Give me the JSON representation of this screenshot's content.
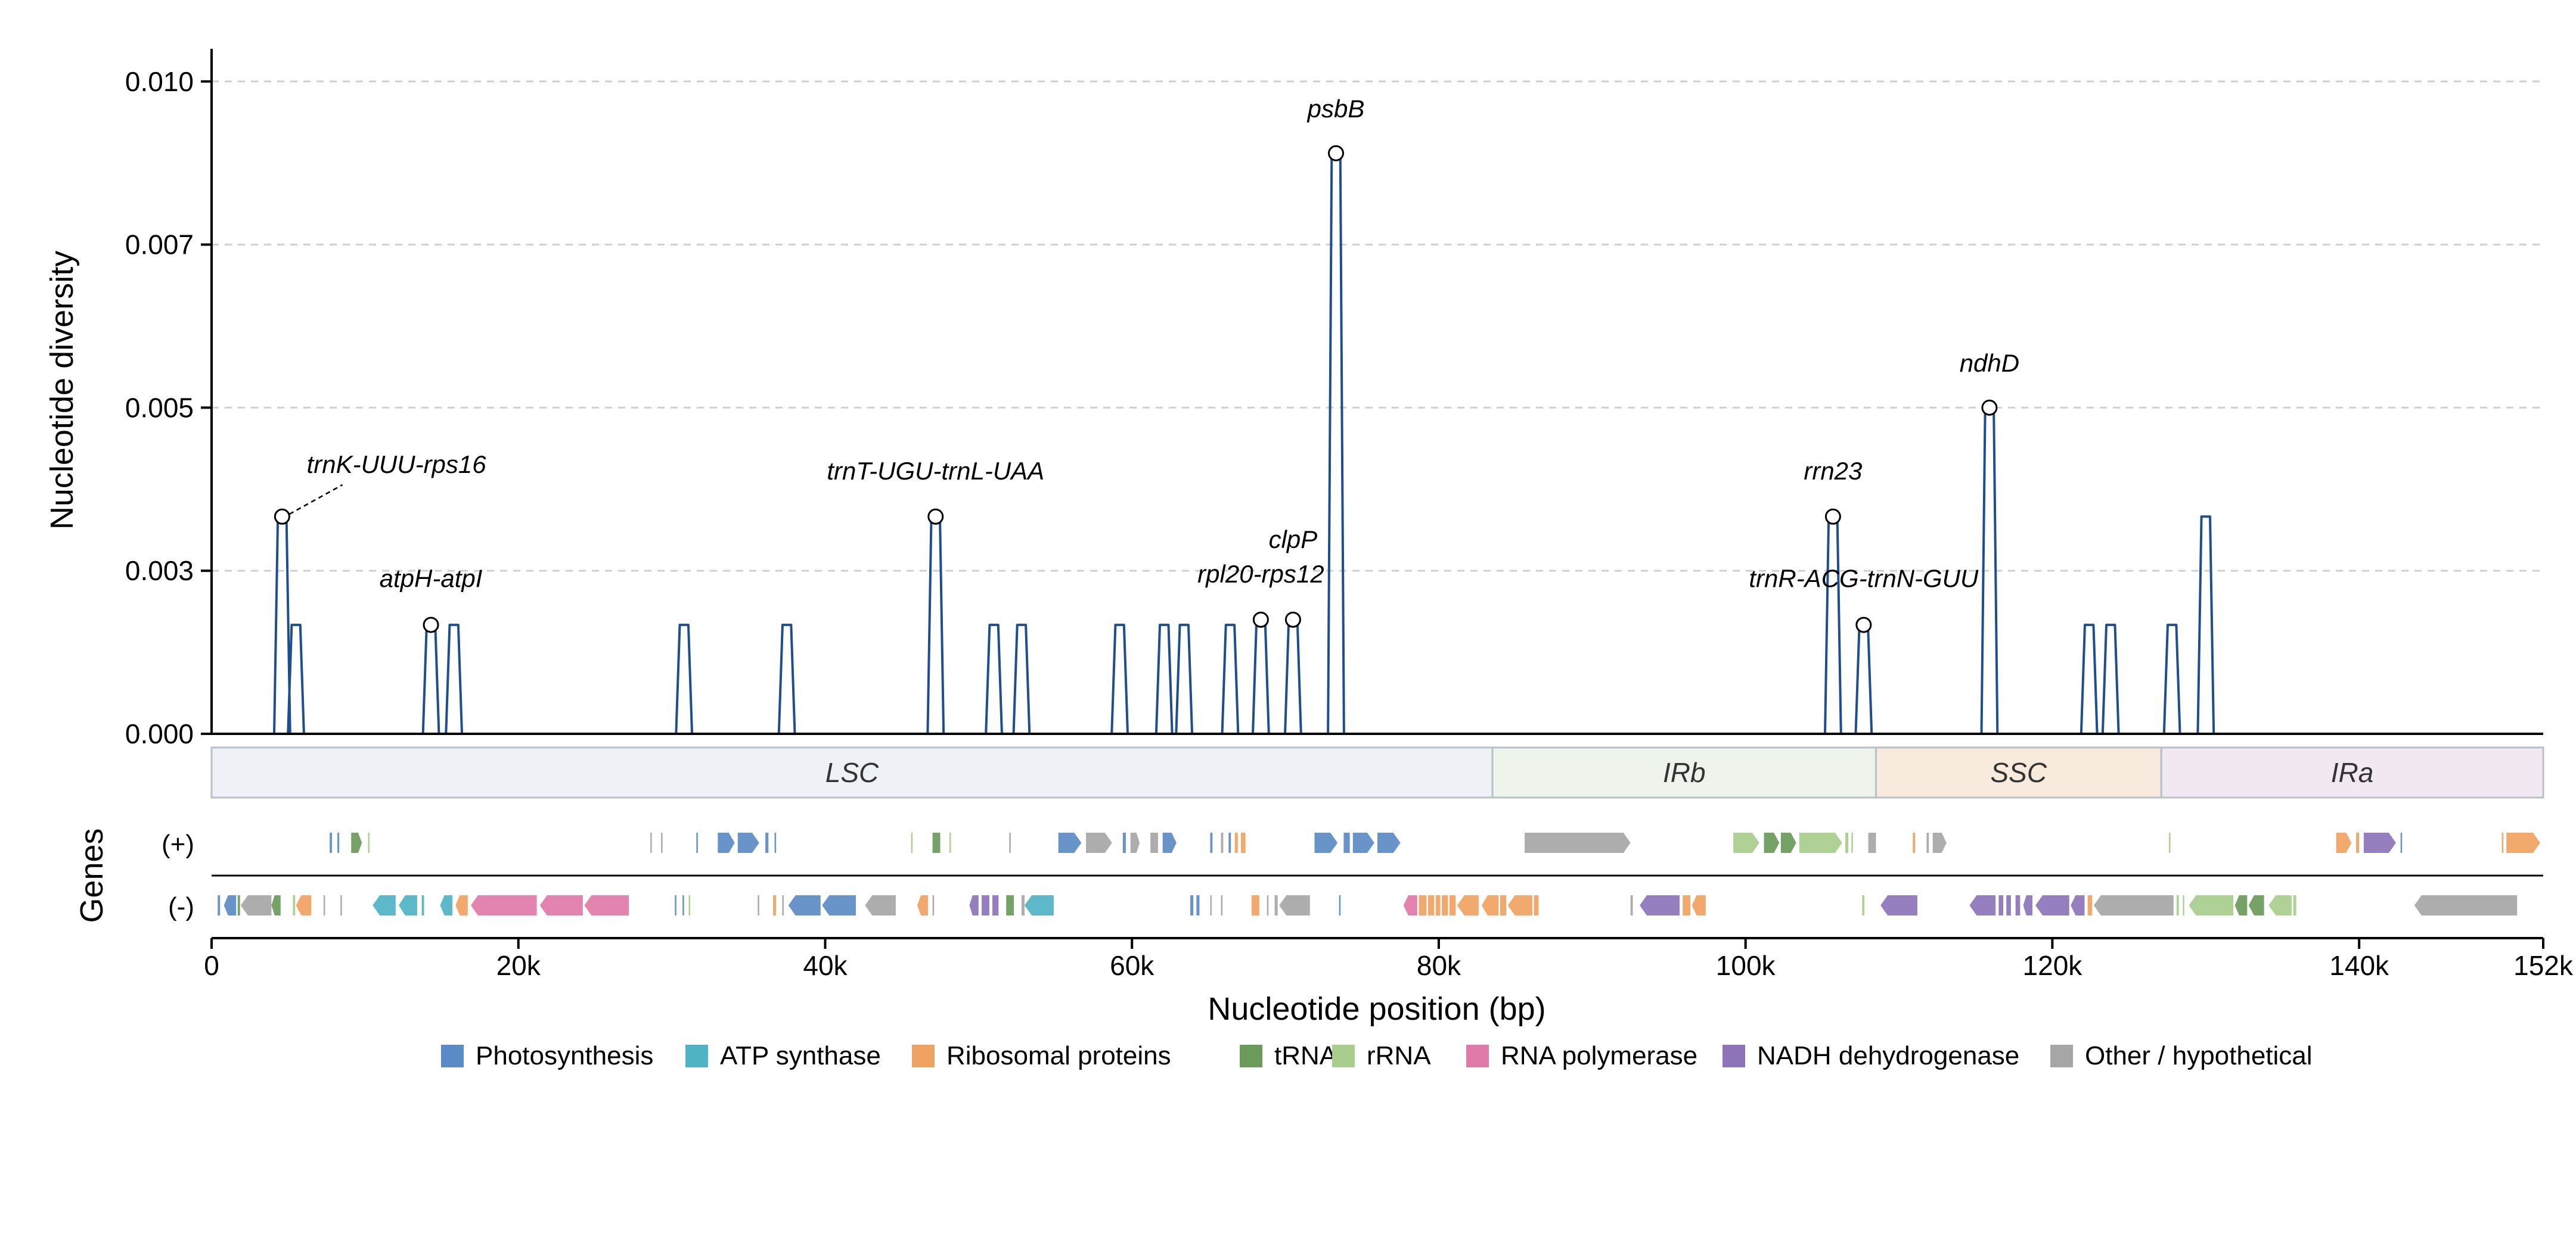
{
  "chart_data": {
    "type": "line",
    "title": "",
    "xlabel": "Nucleotide position (bp)",
    "ylabel": "Nucleotide diversity",
    "genes_label": "Genes",
    "xlim": [
      0,
      152000
    ],
    "ylim": [
      0,
      0.0105
    ],
    "grid": true,
    "y_ticks": [
      {
        "value": 0.0,
        "label": "0.000"
      },
      {
        "value": 0.0025,
        "label": "0.003"
      },
      {
        "value": 0.005,
        "label": "0.005"
      },
      {
        "value": 0.0075,
        "label": "0.007"
      },
      {
        "value": 0.01,
        "label": "0.010"
      }
    ],
    "x_ticks": [
      {
        "value": 0,
        "label": "0"
      },
      {
        "value": 20000,
        "label": "20k"
      },
      {
        "value": 40000,
        "label": "40k"
      },
      {
        "value": 60000,
        "label": "60k"
      },
      {
        "value": 80000,
        "label": "80k"
      },
      {
        "value": 100000,
        "label": "100k"
      },
      {
        "value": 120000,
        "label": "120k"
      },
      {
        "value": 140000,
        "label": "140k"
      },
      {
        "value": 152000,
        "label": "152k"
      }
    ],
    "series": [
      {
        "color": "#1f4e8c",
        "peaks": [
          {
            "x": 4600,
            "y": 0.00333
          },
          {
            "x": 5500,
            "y": 0.00167
          },
          {
            "x": 14300,
            "y": 0.00167
          },
          {
            "x": 15800,
            "y": 0.00167
          },
          {
            "x": 30800,
            "y": 0.00167
          },
          {
            "x": 37500,
            "y": 0.00167
          },
          {
            "x": 47200,
            "y": 0.00333
          },
          {
            "x": 51000,
            "y": 0.00167
          },
          {
            "x": 52800,
            "y": 0.00167
          },
          {
            "x": 59200,
            "y": 0.00167
          },
          {
            "x": 62100,
            "y": 0.00167
          },
          {
            "x": 63400,
            "y": 0.00167
          },
          {
            "x": 66400,
            "y": 0.00167
          },
          {
            "x": 68400,
            "y": 0.00175
          },
          {
            "x": 70500,
            "y": 0.00175
          },
          {
            "x": 73300,
            "y": 0.0089
          },
          {
            "x": 105700,
            "y": 0.00333
          },
          {
            "x": 107700,
            "y": 0.00167
          },
          {
            "x": 115900,
            "y": 0.005
          },
          {
            "x": 122400,
            "y": 0.00167
          },
          {
            "x": 123800,
            "y": 0.00167
          },
          {
            "x": 127800,
            "y": 0.00167
          },
          {
            "x": 130000,
            "y": 0.00333
          }
        ]
      }
    ],
    "annotations": [
      {
        "label": "trnK-UUU-rps16",
        "x": 4600,
        "y": 0.00333,
        "text_x": 6200,
        "text_y": 0.004,
        "leader": true
      },
      {
        "label": "atpH-atpI",
        "x": 14300,
        "y": 0.00167,
        "text_x": 14300,
        "text_y": 0.00225,
        "leader": false
      },
      {
        "label": "trnT-UGU-trnL-UAA",
        "x": 47200,
        "y": 0.00333,
        "text_x": 47200,
        "text_y": 0.0039,
        "leader": false
      },
      {
        "label": "rpl20-rps12",
        "x": 68400,
        "y": 0.00175,
        "text_x": 68400,
        "text_y": 0.00232,
        "leader": false
      },
      {
        "label": "clpP",
        "x": 70500,
        "y": 0.00175,
        "text_x": 70500,
        "text_y": 0.00285,
        "leader": false
      },
      {
        "label": "psbB",
        "x": 73300,
        "y": 0.0089,
        "text_x": 73300,
        "text_y": 0.00945,
        "leader": false
      },
      {
        "label": "rrn23",
        "x": 105700,
        "y": 0.00333,
        "text_x": 105700,
        "text_y": 0.0039,
        "leader": false
      },
      {
        "label": "trnR-ACG-trnN-GUU",
        "x": 107700,
        "y": 0.00167,
        "text_x": 107700,
        "text_y": 0.00225,
        "leader": false
      },
      {
        "label": "ndhD",
        "x": 115900,
        "y": 0.005,
        "text_x": 115900,
        "text_y": 0.00555,
        "leader": false
      }
    ],
    "regions": [
      {
        "label": "LSC",
        "start": 0,
        "end": 83500,
        "fill": "#eef2f6"
      },
      {
        "label": "IRb",
        "start": 83500,
        "end": 108500,
        "fill": "#eef3ec"
      },
      {
        "label": "SSC",
        "start": 108500,
        "end": 127100,
        "fill": "#f8eadc"
      },
      {
        "label": "IRa",
        "start": 127100,
        "end": 152000,
        "fill": "#f1e8f2"
      }
    ],
    "strands": {
      "plus": "(+)",
      "minus": "(-)"
    },
    "categories": [
      {
        "key": "photo",
        "name": "Photosynthesis",
        "color": "#5b8bc6"
      },
      {
        "key": "atp",
        "name": "ATP synthase",
        "color": "#4fb3c4"
      },
      {
        "key": "ribo",
        "name": "Ribosomal proteins",
        "color": "#f0a262"
      },
      {
        "key": "trna",
        "name": "tRNA",
        "color": "#6b9a5a"
      },
      {
        "key": "rrna",
        "name": "rRNA",
        "color": "#a9cd8d"
      },
      {
        "key": "rnap",
        "name": "RNA polymerase",
        "color": "#e07aa8"
      },
      {
        "key": "ndh",
        "name": "NADH dehydrogenase",
        "color": "#8d74b8"
      },
      {
        "key": "other",
        "name": "Other / hypothetical",
        "color": "#a6a6a6"
      }
    ],
    "genes_plus": [
      {
        "start": 7700,
        "end": 7850,
        "cat": "photo"
      },
      {
        "start": 8200,
        "end": 8320,
        "cat": "photo"
      },
      {
        "start": 9100,
        "end": 9800,
        "cat": "trna"
      },
      {
        "start": 10200,
        "end": 10300,
        "cat": "rrna"
      },
      {
        "start": 28600,
        "end": 28700,
        "cat": "other"
      },
      {
        "start": 29300,
        "end": 29400,
        "cat": "other"
      },
      {
        "start": 31600,
        "end": 31700,
        "cat": "photo"
      },
      {
        "start": 33000,
        "end": 34100,
        "cat": "photo"
      },
      {
        "start": 34300,
        "end": 35700,
        "cat": "photo"
      },
      {
        "start": 36100,
        "end": 36300,
        "cat": "photo"
      },
      {
        "start": 36700,
        "end": 36800,
        "cat": "photo"
      },
      {
        "start": 45600,
        "end": 45700,
        "cat": "rrna"
      },
      {
        "start": 47000,
        "end": 47500,
        "cat": "trna"
      },
      {
        "start": 48100,
        "end": 48200,
        "cat": "rrna"
      },
      {
        "start": 52000,
        "end": 52100,
        "cat": "other"
      },
      {
        "start": 55200,
        "end": 56700,
        "cat": "photo"
      },
      {
        "start": 57000,
        "end": 58700,
        "cat": "other"
      },
      {
        "start": 59400,
        "end": 59600,
        "cat": "photo"
      },
      {
        "start": 59900,
        "end": 60500,
        "cat": "other"
      },
      {
        "start": 61200,
        "end": 61700,
        "cat": "other"
      },
      {
        "start": 62000,
        "end": 62900,
        "cat": "photo"
      },
      {
        "start": 65100,
        "end": 65250,
        "cat": "photo"
      },
      {
        "start": 65800,
        "end": 65950,
        "cat": "other"
      },
      {
        "start": 66300,
        "end": 66450,
        "cat": "photo"
      },
      {
        "start": 66700,
        "end": 66900,
        "cat": "ribo"
      },
      {
        "start": 67100,
        "end": 67400,
        "cat": "ribo"
      },
      {
        "start": 71900,
        "end": 73400,
        "cat": "photo"
      },
      {
        "start": 73800,
        "end": 74200,
        "cat": "photo"
      },
      {
        "start": 74400,
        "end": 75800,
        "cat": "photo"
      },
      {
        "start": 76000,
        "end": 77500,
        "cat": "photo"
      },
      {
        "start": 85600,
        "end": 92500,
        "cat": "other"
      },
      {
        "start": 99200,
        "end": 100900,
        "cat": "rrna"
      },
      {
        "start": 101200,
        "end": 102200,
        "cat": "trna"
      },
      {
        "start": 102300,
        "end": 103300,
        "cat": "trna"
      },
      {
        "start": 103500,
        "end": 106300,
        "cat": "rrna"
      },
      {
        "start": 106500,
        "end": 106700,
        "cat": "rrna"
      },
      {
        "start": 106900,
        "end": 107000,
        "cat": "rrna"
      },
      {
        "start": 108000,
        "end": 108500,
        "cat": "other"
      },
      {
        "start": 110900,
        "end": 111050,
        "cat": "ribo"
      },
      {
        "start": 111800,
        "end": 111950,
        "cat": "other"
      },
      {
        "start": 112200,
        "end": 113100,
        "cat": "other"
      },
      {
        "start": 127600,
        "end": 127700,
        "cat": "rrna"
      },
      {
        "start": 138500,
        "end": 139500,
        "cat": "ribo"
      },
      {
        "start": 139800,
        "end": 140000,
        "cat": "ribo"
      },
      {
        "start": 140300,
        "end": 142400,
        "cat": "ndh"
      },
      {
        "start": 142700,
        "end": 142800,
        "cat": "photo"
      },
      {
        "start": 149300,
        "end": 149400,
        "cat": "ribo"
      },
      {
        "start": 149600,
        "end": 151800,
        "cat": "ribo"
      }
    ],
    "genes_minus": [
      {
        "start": 400,
        "end": 550,
        "cat": "photo"
      },
      {
        "start": 800,
        "end": 1600,
        "cat": "photo"
      },
      {
        "start": 1700,
        "end": 1850,
        "cat": "trna"
      },
      {
        "start": 1900,
        "end": 3900,
        "cat": "other"
      },
      {
        "start": 3900,
        "end": 4500,
        "cat": "trna"
      },
      {
        "start": 5300,
        "end": 5450,
        "cat": "rrna"
      },
      {
        "start": 5500,
        "end": 6500,
        "cat": "ribo"
      },
      {
        "start": 7300,
        "end": 7400,
        "cat": "other"
      },
      {
        "start": 8400,
        "end": 8500,
        "cat": "other"
      },
      {
        "start": 10500,
        "end": 12000,
        "cat": "atp"
      },
      {
        "start": 12200,
        "end": 13400,
        "cat": "atp"
      },
      {
        "start": 13700,
        "end": 13850,
        "cat": "atp"
      },
      {
        "start": 14900,
        "end": 15700,
        "cat": "atp"
      },
      {
        "start": 15900,
        "end": 16700,
        "cat": "ribo"
      },
      {
        "start": 16900,
        "end": 21200,
        "cat": "rnap"
      },
      {
        "start": 21400,
        "end": 24200,
        "cat": "rnap"
      },
      {
        "start": 24300,
        "end": 27200,
        "cat": "rnap"
      },
      {
        "start": 30200,
        "end": 30300,
        "cat": "photo"
      },
      {
        "start": 30700,
        "end": 30800,
        "cat": "photo"
      },
      {
        "start": 31100,
        "end": 31200,
        "cat": "rrna"
      },
      {
        "start": 35600,
        "end": 35700,
        "cat": "other"
      },
      {
        "start": 36600,
        "end": 36800,
        "cat": "ribo"
      },
      {
        "start": 37200,
        "end": 37300,
        "cat": "other"
      },
      {
        "start": 37600,
        "end": 39700,
        "cat": "photo"
      },
      {
        "start": 39800,
        "end": 42000,
        "cat": "photo"
      },
      {
        "start": 42600,
        "end": 44600,
        "cat": "other"
      },
      {
        "start": 46000,
        "end": 46700,
        "cat": "ribo"
      },
      {
        "start": 47000,
        "end": 47100,
        "cat": "other"
      },
      {
        "start": 49400,
        "end": 50000,
        "cat": "ndh"
      },
      {
        "start": 50200,
        "end": 50700,
        "cat": "ndh"
      },
      {
        "start": 50900,
        "end": 51300,
        "cat": "ndh"
      },
      {
        "start": 51800,
        "end": 52300,
        "cat": "trna"
      },
      {
        "start": 52800,
        "end": 53000,
        "cat": "other"
      },
      {
        "start": 53000,
        "end": 54900,
        "cat": "atp"
      },
      {
        "start": 63800,
        "end": 64000,
        "cat": "photo"
      },
      {
        "start": 64200,
        "end": 64400,
        "cat": "photo"
      },
      {
        "start": 65100,
        "end": 65200,
        "cat": "other"
      },
      {
        "start": 65800,
        "end": 65900,
        "cat": "other"
      },
      {
        "start": 67800,
        "end": 68300,
        "cat": "ribo"
      },
      {
        "start": 68800,
        "end": 68900,
        "cat": "other"
      },
      {
        "start": 69300,
        "end": 69500,
        "cat": "other"
      },
      {
        "start": 69600,
        "end": 71600,
        "cat": "other"
      },
      {
        "start": 73500,
        "end": 73600,
        "cat": "photo"
      },
      {
        "start": 77700,
        "end": 78600,
        "cat": "rnap"
      },
      {
        "start": 78700,
        "end": 79200,
        "cat": "ribo"
      },
      {
        "start": 79300,
        "end": 79700,
        "cat": "ribo"
      },
      {
        "start": 79800,
        "end": 80100,
        "cat": "ribo"
      },
      {
        "start": 80200,
        "end": 80600,
        "cat": "ribo"
      },
      {
        "start": 80700,
        "end": 81100,
        "cat": "ribo"
      },
      {
        "start": 81200,
        "end": 82600,
        "cat": "ribo"
      },
      {
        "start": 82800,
        "end": 83900,
        "cat": "ribo"
      },
      {
        "start": 84000,
        "end": 84400,
        "cat": "ribo"
      },
      {
        "start": 84500,
        "end": 86100,
        "cat": "ribo"
      },
      {
        "start": 86200,
        "end": 86500,
        "cat": "ribo"
      },
      {
        "start": 92500,
        "end": 92650,
        "cat": "other"
      },
      {
        "start": 93100,
        "end": 95700,
        "cat": "ndh"
      },
      {
        "start": 95900,
        "end": 96400,
        "cat": "ribo"
      },
      {
        "start": 96500,
        "end": 97400,
        "cat": "ribo"
      },
      {
        "start": 107600,
        "end": 107750,
        "cat": "rrna"
      },
      {
        "start": 108800,
        "end": 111200,
        "cat": "ndh"
      },
      {
        "start": 114600,
        "end": 116300,
        "cat": "ndh"
      },
      {
        "start": 116500,
        "end": 116800,
        "cat": "ndh"
      },
      {
        "start": 117000,
        "end": 117300,
        "cat": "ndh"
      },
      {
        "start": 117600,
        "end": 117900,
        "cat": "ndh"
      },
      {
        "start": 118100,
        "end": 118700,
        "cat": "ndh"
      },
      {
        "start": 118900,
        "end": 121100,
        "cat": "ndh"
      },
      {
        "start": 121200,
        "end": 122100,
        "cat": "ndh"
      },
      {
        "start": 122300,
        "end": 122600,
        "cat": "ribo"
      },
      {
        "start": 122700,
        "end": 127900,
        "cat": "other"
      },
      {
        "start": 128100,
        "end": 128250,
        "cat": "rrna"
      },
      {
        "start": 128500,
        "end": 128600,
        "cat": "rrna"
      },
      {
        "start": 128900,
        "end": 131800,
        "cat": "rrna"
      },
      {
        "start": 131900,
        "end": 132700,
        "cat": "trna"
      },
      {
        "start": 132800,
        "end": 133800,
        "cat": "trna"
      },
      {
        "start": 134100,
        "end": 135600,
        "cat": "rrna"
      },
      {
        "start": 135700,
        "end": 135900,
        "cat": "rrna"
      },
      {
        "start": 143600,
        "end": 150300,
        "cat": "other"
      }
    ]
  }
}
